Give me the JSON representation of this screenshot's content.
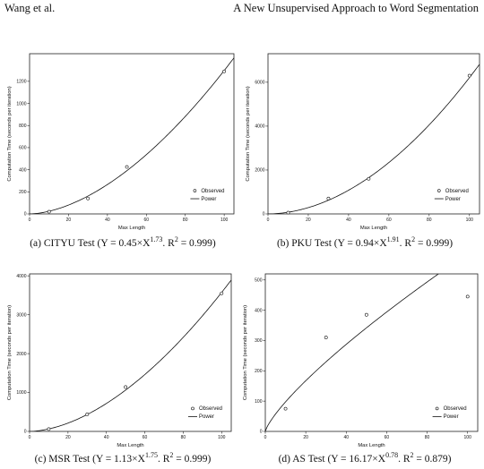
{
  "header": {
    "left": "Wang et al.",
    "right": "A New Unsupervised Approach to Word Segmentation"
  },
  "chart_data": [
    {
      "id": "a",
      "type": "scatter",
      "xlabel": "Max Length",
      "ylabel": "Computation Time (seconds per iteration)",
      "xlim": [
        0,
        105
      ],
      "ylim": [
        0,
        1450
      ],
      "xticks": [
        0,
        20,
        40,
        60,
        80,
        100
      ],
      "yticks": [
        0,
        200,
        400,
        600,
        800,
        1000,
        1200
      ],
      "legend": {
        "position": "bottom-right",
        "observed": "Observed",
        "power": "Power"
      },
      "series": [
        {
          "name": "Observed",
          "x": [
            10,
            30,
            50,
            100
          ],
          "y": [
            20,
            140,
            425,
            1290
          ]
        },
        {
          "name": "Power",
          "coef": 0.45,
          "exp": 1.73
        }
      ],
      "caption": {
        "prefix": "(a)  CITYU Test (Y = 0.45×X",
        "exp": "1.73",
        "mid": ". R",
        "sq": "2",
        "suffix": " = 0.999)"
      }
    },
    {
      "id": "b",
      "type": "scatter",
      "xlabel": "Max Length",
      "ylabel": "Computation Time (seconds per iteration)",
      "xlim": [
        0,
        105
      ],
      "ylim": [
        0,
        7300
      ],
      "xticks": [
        0,
        20,
        40,
        60,
        80,
        100
      ],
      "yticks": [
        0,
        2000,
        4000,
        6000
      ],
      "legend": {
        "position": "bottom-right",
        "observed": "Observed",
        "power": "Power"
      },
      "series": [
        {
          "name": "Observed",
          "x": [
            10,
            30,
            50,
            100
          ],
          "y": [
            60,
            700,
            1600,
            6300
          ]
        },
        {
          "name": "Power",
          "coef": 0.94,
          "exp": 1.91
        }
      ],
      "caption": {
        "prefix": "(b)  PKU Test (Y = 0.94×X",
        "exp": "1.91",
        "mid": ". R",
        "sq": "2",
        "suffix": " = 0.999)"
      }
    },
    {
      "id": "c",
      "type": "scatter",
      "xlabel": "Max Length",
      "ylabel": "Computation Time (seconds per iteration)",
      "xlim": [
        0,
        105
      ],
      "ylim": [
        0,
        4050
      ],
      "xticks": [
        0,
        20,
        40,
        60,
        80,
        100
      ],
      "yticks": [
        0,
        1000,
        2000,
        3000,
        4000
      ],
      "legend": {
        "position": "bottom-right",
        "observed": "Observed",
        "power": "Power"
      },
      "series": [
        {
          "name": "Observed",
          "x": [
            10,
            30,
            50,
            100
          ],
          "y": [
            60,
            440,
            1140,
            3550
          ]
        },
        {
          "name": "Power",
          "coef": 1.13,
          "exp": 1.75
        }
      ],
      "caption": {
        "prefix": "(c)  MSR Test (Y = 1.13×X",
        "exp": "1.75",
        "mid": ". R",
        "sq": "2",
        "suffix": " = 0.999)"
      }
    },
    {
      "id": "d",
      "type": "scatter",
      "xlabel": "Max Length",
      "ylabel": "Computation Time (seconds per iteration)",
      "xlim": [
        0,
        105
      ],
      "ylim": [
        0,
        520
      ],
      "xticks": [
        0,
        20,
        40,
        60,
        80,
        100
      ],
      "yticks": [
        0,
        100,
        200,
        300,
        400,
        500
      ],
      "legend": {
        "position": "bottom-right",
        "observed": "Observed",
        "power": "Power"
      },
      "series": [
        {
          "name": "Observed",
          "x": [
            10,
            30,
            50,
            100
          ],
          "y": [
            75,
            310,
            385,
            445
          ]
        },
        {
          "name": "Power",
          "coef": 16.17,
          "exp": 0.78
        }
      ],
      "caption": {
        "prefix": "(d)  AS Test (Y = 16.17×X",
        "exp": "0.78",
        "mid": ". R",
        "sq": "2",
        "suffix": " = 0.879)"
      }
    }
  ]
}
